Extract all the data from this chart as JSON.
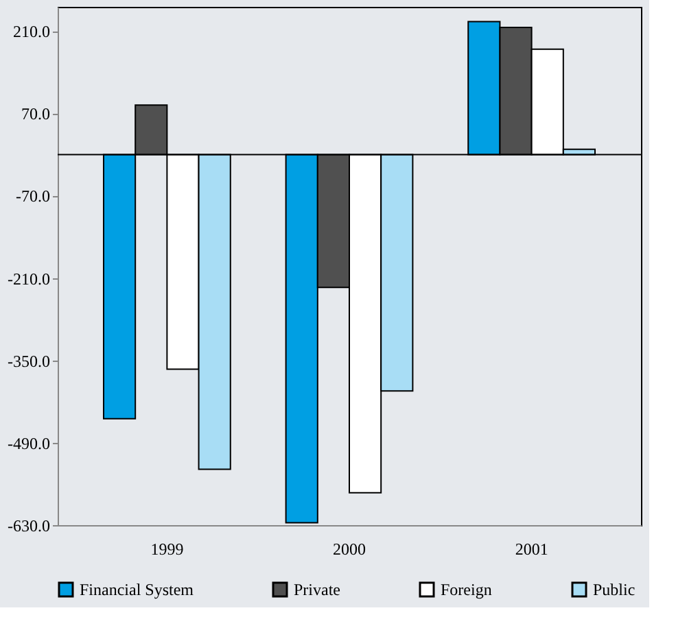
{
  "chart_data": {
    "type": "bar",
    "categories": [
      "1999",
      "2000",
      "2001"
    ],
    "series": [
      {
        "name": "Financial System",
        "color": "#009fe3",
        "values": [
          -449,
          -626,
          226
        ]
      },
      {
        "name": "Private",
        "color": "#505050",
        "values": [
          84,
          -226,
          216
        ]
      },
      {
        "name": "Foreign",
        "color": "#ffffff",
        "values": [
          -365,
          -575,
          179
        ]
      },
      {
        "name": "Public",
        "color": "#a8ddf5",
        "values": [
          -535,
          -402,
          9
        ]
      }
    ],
    "ylim": [
      -630,
      251
    ],
    "yticks": [
      {
        "value": 210,
        "label": "210.0"
      },
      {
        "value": 70,
        "label": "70.0"
      },
      {
        "value": -70,
        "label": "-70.0"
      },
      {
        "value": -210,
        "label": "-210.0"
      },
      {
        "value": -350,
        "label": "-350.0"
      },
      {
        "value": -490,
        "label": "-490.0"
      },
      {
        "value": -630,
        "label": "-630.0"
      }
    ],
    "ref_lines": [
      {
        "axis": "y",
        "value": 0
      }
    ],
    "grid": false,
    "legend": "bottom"
  }
}
